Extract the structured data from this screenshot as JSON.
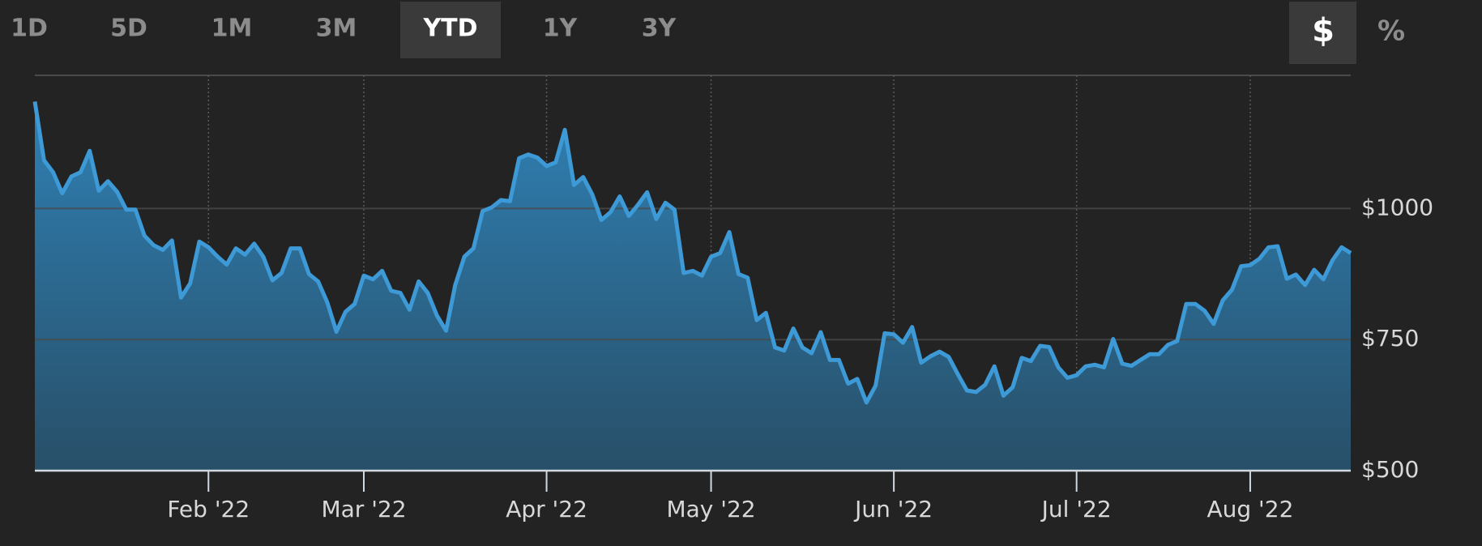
{
  "ui": {
    "range_buttons": [
      "1D",
      "5D",
      "1M",
      "3M",
      "YTD",
      "1Y",
      "3Y"
    ],
    "selected_range": 4,
    "unit_buttons": [
      "$",
      "%"
    ],
    "selected_unit": 0
  },
  "chart_data": {
    "type": "area",
    "categories": [
      null,
      null,
      null,
      null,
      null,
      null,
      null,
      null,
      null,
      null,
      null,
      null,
      null,
      null,
      null,
      null,
      null,
      null,
      null,
      "Feb '22",
      null,
      null,
      null,
      null,
      null,
      null,
      null,
      null,
      null,
      null,
      null,
      null,
      null,
      null,
      null,
      null,
      "Mar '22",
      null,
      null,
      null,
      null,
      null,
      null,
      null,
      null,
      null,
      null,
      null,
      null,
      null,
      null,
      null,
      null,
      null,
      null,
      null,
      "Apr '22",
      null,
      null,
      null,
      null,
      null,
      null,
      null,
      null,
      null,
      null,
      null,
      null,
      null,
      null,
      null,
      null,
      null,
      "May '22",
      null,
      null,
      null,
      null,
      null,
      null,
      null,
      null,
      null,
      null,
      null,
      null,
      null,
      null,
      null,
      null,
      null,
      null,
      null,
      "Jun '22",
      null,
      null,
      null,
      null,
      null,
      null,
      null,
      null,
      null,
      null,
      null,
      null,
      null,
      null,
      null,
      null,
      null,
      null,
      null,
      "Jul '22",
      null,
      null,
      null,
      null,
      null,
      null,
      null,
      null,
      null,
      null,
      null,
      null,
      null,
      null,
      null,
      null,
      null,
      null,
      "Aug '22",
      null,
      null,
      null,
      null,
      null,
      null,
      null,
      null,
      null,
      null,
      null
    ],
    "values": [
      1204,
      1092,
      1069,
      1029,
      1061,
      1069,
      1110,
      1034,
      1052,
      1032,
      998,
      998,
      948,
      930,
      921,
      939,
      830,
      857,
      937,
      926,
      908,
      893,
      924,
      912,
      933,
      908,
      863,
      877,
      924,
      924,
      875,
      861,
      821,
      765,
      803,
      818,
      872,
      865,
      881,
      843,
      839,
      807,
      861,
      839,
      796,
      767,
      854,
      908,
      924,
      995,
      1002,
      1016,
      1014,
      1096,
      1103,
      1097,
      1081,
      1088,
      1150,
      1045,
      1060,
      1027,
      978,
      993,
      1023,
      986,
      1007,
      1031,
      980,
      1011,
      998,
      877,
      881,
      872,
      908,
      915,
      955,
      875,
      868,
      787,
      801,
      735,
      729,
      771,
      735,
      724,
      764,
      711,
      711,
      666,
      675,
      630,
      662,
      762,
      760,
      744,
      774,
      706,
      718,
      727,
      717,
      684,
      653,
      650,
      664,
      699,
      643,
      659,
      715,
      709,
      738,
      736,
      697,
      677,
      682,
      699,
      702,
      697,
      751,
      704,
      700,
      711,
      722,
      722,
      740,
      747,
      818,
      818,
      805,
      780,
      825,
      845,
      890,
      892,
      904,
      926,
      928,
      866,
      874,
      854,
      883,
      865,
      901,
      926,
      915
    ],
    "color": "#3d9ad6",
    "ylim": [
      500,
      1254
    ],
    "yticks": [
      {
        "value": 500,
        "label": "$500"
      },
      {
        "value": 750,
        "label": "$750"
      },
      {
        "value": 1000,
        "label": "$1000"
      }
    ],
    "grid": true
  }
}
